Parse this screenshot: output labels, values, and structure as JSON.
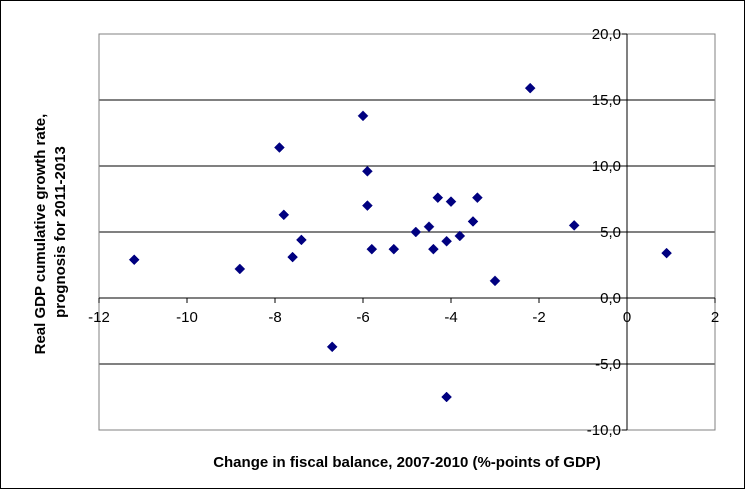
{
  "chart_data": {
    "type": "scatter",
    "title": "",
    "xlabel": "Change in fiscal balance, 2007-2010 (%-points of GDP)",
    "ylabel_lines": [
      "Real GDP cumulative growth rate,",
      "prognosis for 2011-2013"
    ],
    "xlim": [
      -12,
      2
    ],
    "ylim": [
      -10,
      20
    ],
    "x_ticks": [
      -12,
      -10,
      -8,
      -6,
      -4,
      -2,
      0,
      2
    ],
    "x_tick_labels": [
      "-12",
      "-10",
      "-8",
      "-6",
      "-4",
      "-2",
      "0",
      "2"
    ],
    "y_ticks": [
      -10,
      -5,
      0,
      5,
      10,
      15,
      20
    ],
    "y_tick_labels": [
      "-10,0",
      "-5,0",
      "0,0",
      "5,0",
      "10,0",
      "15,0",
      "20,0"
    ],
    "grid": "horizontal",
    "legend": "none",
    "marker": "diamond",
    "marker_color": "#000080",
    "series": [
      {
        "points": [
          {
            "x": -11.2,
            "y": 2.9
          },
          {
            "x": -8.8,
            "y": 2.2
          },
          {
            "x": -7.9,
            "y": 11.4
          },
          {
            "x": -7.8,
            "y": 6.3
          },
          {
            "x": -7.6,
            "y": 3.1
          },
          {
            "x": -7.4,
            "y": 4.4
          },
          {
            "x": -6.7,
            "y": -3.7
          },
          {
            "x": -6.0,
            "y": 13.8
          },
          {
            "x": -5.9,
            "y": 9.6
          },
          {
            "x": -5.9,
            "y": 7.0
          },
          {
            "x": -5.8,
            "y": 3.7
          },
          {
            "x": -5.3,
            "y": 3.7
          },
          {
            "x": -4.8,
            "y": 5.0
          },
          {
            "x": -4.5,
            "y": 5.4
          },
          {
            "x": -4.4,
            "y": 3.7
          },
          {
            "x": -4.3,
            "y": 7.6
          },
          {
            "x": -4.1,
            "y": 4.3
          },
          {
            "x": -4.1,
            "y": -7.5
          },
          {
            "x": -4.0,
            "y": 7.3
          },
          {
            "x": -3.8,
            "y": 4.7
          },
          {
            "x": -3.5,
            "y": 5.8
          },
          {
            "x": -3.4,
            "y": 7.6
          },
          {
            "x": -3.0,
            "y": 1.3
          },
          {
            "x": -2.2,
            "y": 15.9
          },
          {
            "x": -1.2,
            "y": 5.5
          },
          {
            "x": 0.9,
            "y": 3.4
          }
        ]
      }
    ]
  }
}
